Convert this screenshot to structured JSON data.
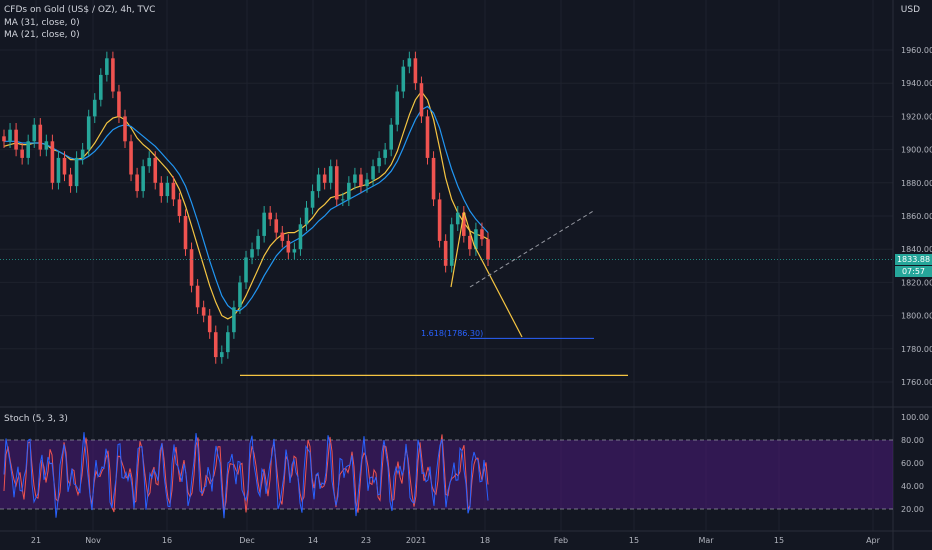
{
  "header": {
    "symbol_line": "CFDs on Gold (US$ / OZ), 4h, TVC",
    "ma1": "MA (31, close, 0)",
    "ma2": "MA (21, close, 0)",
    "currency": "USD"
  },
  "price_tags": {
    "last": "1833.88",
    "countdown": "07:57"
  },
  "stoch": {
    "label": "Stoch (5, 3, 3)",
    "ticks": [
      "100.00",
      "80.00",
      "60.00",
      "40.00",
      "20.00"
    ]
  },
  "fib": {
    "label": "1.618(1786.30)",
    "value": 1786.3
  },
  "colors": {
    "background": "#131722",
    "up": "#26a69a",
    "down": "#ef5350",
    "ma31": "#2196f3",
    "ma21": "#f5c542",
    "stoch_k": "#2962ff",
    "stoch_d": "#ef5350",
    "stoch_band": "#4a1a7a",
    "drawing": "#f5c542"
  },
  "chart_data": {
    "type": "line",
    "title": "CFDs on Gold (US$ / OZ), 4h, TVC",
    "x_ticks": [
      "21",
      "Nov",
      "16",
      "Dec",
      "14",
      "23",
      "2021",
      "18",
      "Feb",
      "15",
      "Mar",
      "15",
      "Apr"
    ],
    "y_ticks": [
      1760,
      1780,
      1800,
      1820,
      1840,
      1860,
      1880,
      1900,
      1920,
      1940,
      1960
    ],
    "ylim": [
      1752,
      1975
    ],
    "series": [
      {
        "name": "close",
        "values": [
          1905,
          1912,
          1900,
          1895,
          1905,
          1915,
          1900,
          1905,
          1880,
          1895,
          1885,
          1878,
          1895,
          1900,
          1920,
          1930,
          1945,
          1955,
          1935,
          1920,
          1905,
          1885,
          1875,
          1890,
          1895,
          1880,
          1872,
          1880,
          1870,
          1860,
          1840,
          1818,
          1805,
          1800,
          1790,
          1775,
          1778,
          1790,
          1805,
          1820,
          1835,
          1840,
          1848,
          1862,
          1858,
          1850,
          1845,
          1838,
          1840,
          1855,
          1865,
          1875,
          1885,
          1880,
          1890,
          1870,
          1870,
          1880,
          1885,
          1878,
          1882,
          1890,
          1895,
          1900,
          1915,
          1935,
          1950,
          1955,
          1940,
          1920,
          1895,
          1870,
          1845,
          1830,
          1855,
          1862,
          1848,
          1840,
          1852,
          1846,
          1833.88
        ]
      },
      {
        "name": "MA (21, close, 0)",
        "values": [
          1902,
          1903,
          1904,
          1903,
          1903,
          1904,
          1904,
          1903,
          1900,
          1899,
          1897,
          1894,
          1894,
          1895,
          1899,
          1904,
          1910,
          1916,
          1919,
          1920,
          1918,
          1913,
          1907,
          1903,
          1900,
          1896,
          1892,
          1888,
          1883,
          1876,
          1866,
          1854,
          1842,
          1830,
          1818,
          1808,
          1800,
          1798,
          1800,
          1805,
          1812,
          1820,
          1828,
          1836,
          1842,
          1846,
          1849,
          1850,
          1850,
          1852,
          1855,
          1859,
          1864,
          1867,
          1871,
          1872,
          1873,
          1875,
          1877,
          1878,
          1879,
          1881,
          1883,
          1886,
          1891,
          1899,
          1910,
          1921,
          1930,
          1935,
          1930,
          1918,
          1901,
          1883,
          1870,
          1862,
          1856,
          1851,
          1849,
          1848,
          1846
        ]
      },
      {
        "name": "MA (31, close, 0)",
        "values": [
          1905,
          1905,
          1905,
          1904,
          1904,
          1904,
          1904,
          1903,
          1901,
          1899,
          1897,
          1895,
          1894,
          1894,
          1896,
          1899,
          1903,
          1908,
          1912,
          1914,
          1915,
          1914,
          1911,
          1908,
          1905,
          1902,
          1898,
          1894,
          1890,
          1885,
          1878,
          1868,
          1857,
          1845,
          1833,
          1822,
          1812,
          1806,
          1803,
          1803,
          1806,
          1811,
          1817,
          1824,
          1830,
          1836,
          1840,
          1843,
          1845,
          1847,
          1850,
          1853,
          1857,
          1860,
          1864,
          1866,
          1868,
          1870,
          1872,
          1874,
          1876,
          1878,
          1880,
          1883,
          1887,
          1893,
          1901,
          1910,
          1918,
          1924,
          1926,
          1922,
          1913,
          1900,
          1888,
          1878,
          1870,
          1863,
          1858,
          1854,
          1850
        ]
      }
    ],
    "annotations": [
      {
        "type": "horizontal",
        "value": 1764
      },
      {
        "type": "horizontal",
        "value": 1786.3,
        "label": "1.618(1786.30)"
      }
    ],
    "grid": true
  }
}
